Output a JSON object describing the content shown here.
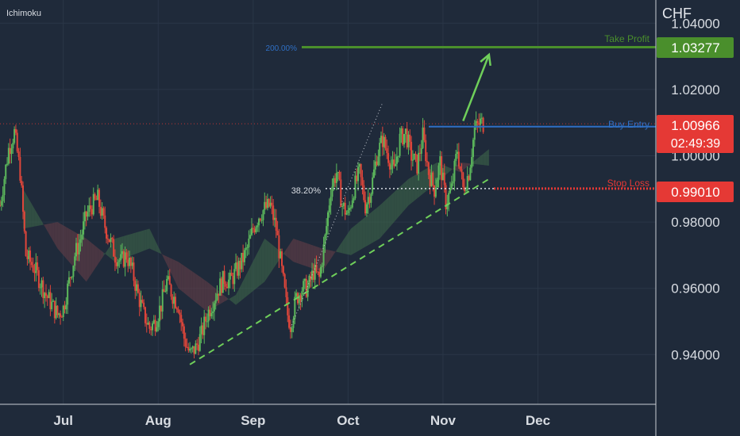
{
  "indicator_label": "Ichimoku",
  "currency_label": "CHF",
  "colors": {
    "background": "#1f2a3a",
    "grid": "#2a3647",
    "axis_line": "#c8cdd4",
    "axis_text": "#d8dce2",
    "candle_up": "#5cb85c",
    "candle_down": "#e0463a",
    "take_profit": "#4a8f2c",
    "buy_entry": "#2f6fc4",
    "stop_loss": "#e53935",
    "trend": "#6fcf5a",
    "fib_label": "#2f6fc4",
    "cloud_green": "#3f6b4b",
    "cloud_red": "#6b3f48"
  },
  "levels": {
    "take_profit": {
      "label": "Take Profit",
      "price": 1.03277,
      "price_label": "1.03277"
    },
    "buy_entry": {
      "label": "Buy Entry",
      "price": 1.0088,
      "price_label": "1.00966",
      "countdown": "02:49:39"
    },
    "stop_loss": {
      "label": "Stop Loss",
      "price": 0.9901,
      "price_label": "0.99010"
    },
    "current_price": 1.00966
  },
  "fib_labels": {
    "top": "200.00%",
    "mid": "38.20%"
  },
  "chart_data": {
    "type": "candlestick",
    "y_axis": {
      "ylim": [
        0.925,
        1.047
      ],
      "ticks": [
        0.94,
        0.96,
        0.98,
        1.0,
        1.02,
        1.04
      ],
      "tick_labels": [
        "0.94000",
        "0.96000",
        "0.98000",
        "1.00000",
        "1.02000",
        "1.04000"
      ]
    },
    "x_axis": {
      "xlim": [
        0,
        228
      ],
      "ticks": [
        22,
        55,
        88,
        121,
        154,
        187
      ],
      "tick_labels": [
        "Jul",
        "Aug",
        "Sep",
        "Oct",
        "Nov",
        "Dec"
      ]
    },
    "close_path": [
      [
        0,
        0.985
      ],
      [
        3,
        1.002
      ],
      [
        5,
        1.007
      ],
      [
        7,
        0.995
      ],
      [
        9,
        0.97
      ],
      [
        12,
        0.966
      ],
      [
        14,
        0.962
      ],
      [
        16,
        0.958
      ],
      [
        18,
        0.955
      ],
      [
        20,
        0.952
      ],
      [
        22,
        0.954
      ],
      [
        24,
        0.962
      ],
      [
        26,
        0.97
      ],
      [
        28,
        0.975
      ],
      [
        30,
        0.982
      ],
      [
        32,
        0.985
      ],
      [
        34,
        0.987
      ],
      [
        36,
        0.98
      ],
      [
        38,
        0.975
      ],
      [
        40,
        0.97
      ],
      [
        42,
        0.968
      ],
      [
        44,
        0.97
      ],
      [
        46,
        0.965
      ],
      [
        48,
        0.958
      ],
      [
        50,
        0.952
      ],
      [
        52,
        0.948
      ],
      [
        54,
        0.95
      ],
      [
        56,
        0.955
      ],
      [
        58,
        0.962
      ],
      [
        60,
        0.958
      ],
      [
        62,
        0.955
      ],
      [
        64,
        0.945
      ],
      [
        66,
        0.94
      ],
      [
        68,
        0.942
      ],
      [
        70,
        0.946
      ],
      [
        72,
        0.952
      ],
      [
        74,
        0.956
      ],
      [
        76,
        0.96
      ],
      [
        78,
        0.963
      ],
      [
        80,
        0.962
      ],
      [
        82,
        0.965
      ],
      [
        84,
        0.968
      ],
      [
        86,
        0.972
      ],
      [
        88,
        0.978
      ],
      [
        90,
        0.982
      ],
      [
        92,
        0.984
      ],
      [
        94,
        0.985
      ],
      [
        96,
        0.978
      ],
      [
        98,
        0.965
      ],
      [
        100,
        0.952
      ],
      [
        101,
        0.949
      ],
      [
        103,
        0.957
      ],
      [
        105,
        0.96
      ],
      [
        107,
        0.96
      ],
      [
        109,
        0.965
      ],
      [
        111,
        0.963
      ],
      [
        113,
        0.975
      ],
      [
        115,
        0.99
      ],
      [
        117,
        0.995
      ],
      [
        119,
        0.985
      ],
      [
        121,
        0.982
      ],
      [
        123,
        0.99
      ],
      [
        125,
        0.995
      ],
      [
        127,
        0.985
      ],
      [
        129,
        0.99
      ],
      [
        131,
        1.0
      ],
      [
        133,
        1.005
      ],
      [
        135,
        1.0
      ],
      [
        137,
        0.995
      ],
      [
        139,
        1.005
      ],
      [
        141,
        1.007
      ],
      [
        143,
        1.0
      ],
      [
        145,
        0.997
      ],
      [
        147,
        1.006
      ],
      [
        149,
        0.995
      ],
      [
        151,
        0.99
      ],
      [
        153,
        0.998
      ],
      [
        155,
        0.986
      ],
      [
        157,
        0.99
      ],
      [
        159,
        1.002
      ],
      [
        161,
        0.99
      ],
      [
        163,
        0.995
      ],
      [
        165,
        1.008
      ],
      [
        167,
        1.01
      ],
      [
        168,
        1.0097
      ]
    ],
    "ichimoku_span_a": [
      [
        8,
        0.99
      ],
      [
        20,
        0.972
      ],
      [
        30,
        0.962
      ],
      [
        40,
        0.975
      ],
      [
        52,
        0.978
      ],
      [
        62,
        0.96
      ],
      [
        72,
        0.953
      ],
      [
        82,
        0.958
      ],
      [
        92,
        0.975
      ],
      [
        102,
        0.968
      ],
      [
        112,
        0.965
      ],
      [
        122,
        0.978
      ],
      [
        132,
        0.985
      ],
      [
        142,
        0.993
      ],
      [
        152,
        0.998
      ],
      [
        160,
        0.995
      ],
      [
        170,
        1.002
      ]
    ],
    "ichimoku_span_b": [
      [
        8,
        0.978
      ],
      [
        20,
        0.98
      ],
      [
        30,
        0.975
      ],
      [
        40,
        0.968
      ],
      [
        52,
        0.972
      ],
      [
        62,
        0.968
      ],
      [
        72,
        0.962
      ],
      [
        82,
        0.955
      ],
      [
        92,
        0.962
      ],
      [
        102,
        0.975
      ],
      [
        112,
        0.972
      ],
      [
        122,
        0.97
      ],
      [
        132,
        0.975
      ],
      [
        142,
        0.985
      ],
      [
        152,
        0.992
      ],
      [
        160,
        0.998
      ],
      [
        170,
        0.997
      ]
    ],
    "trendline": {
      "start": [
        66,
        0.937
      ],
      "end": [
        170,
        0.993
      ]
    },
    "fib_line": {
      "start": [
        101,
        0.948
      ],
      "end": [
        133,
        1.016
      ]
    },
    "arrow": {
      "start": [
        161,
        1.0105
      ],
      "end": [
        170,
        1.0305
      ]
    }
  }
}
